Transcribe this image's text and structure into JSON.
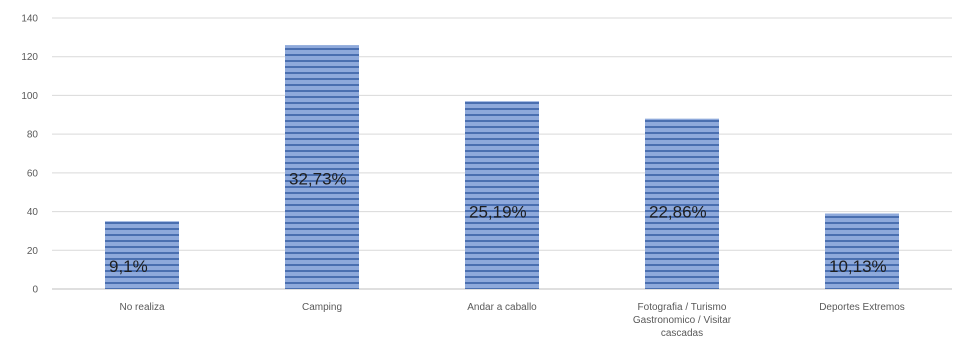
{
  "chart_data": {
    "type": "bar",
    "title": "",
    "xlabel": "",
    "ylabel": "",
    "ylim": [
      0,
      140
    ],
    "yticks": [
      0,
      20,
      40,
      60,
      80,
      100,
      120,
      140
    ],
    "grid": true,
    "legend": "none",
    "categories": [
      [
        "No realiza"
      ],
      [
        "Camping"
      ],
      [
        "Andar a caballo"
      ],
      [
        "Fotografia / Turismo",
        "Gastronomico / Visitar",
        "cascadas"
      ],
      [
        "Deportes Extremos"
      ]
    ],
    "values": [
      35,
      126,
      97,
      88,
      39
    ],
    "data_labels": [
      "9,1%",
      "32,73%",
      "25,19%",
      "22,86%",
      "10,13%"
    ],
    "label_values": [
      12,
      57,
      40,
      40,
      12
    ],
    "colors": {
      "bar_fill": "#8ea9db",
      "bar_stripe": "#4a6fb0",
      "grid": "#d9d9d9",
      "axis": "#bfbfbf"
    }
  }
}
